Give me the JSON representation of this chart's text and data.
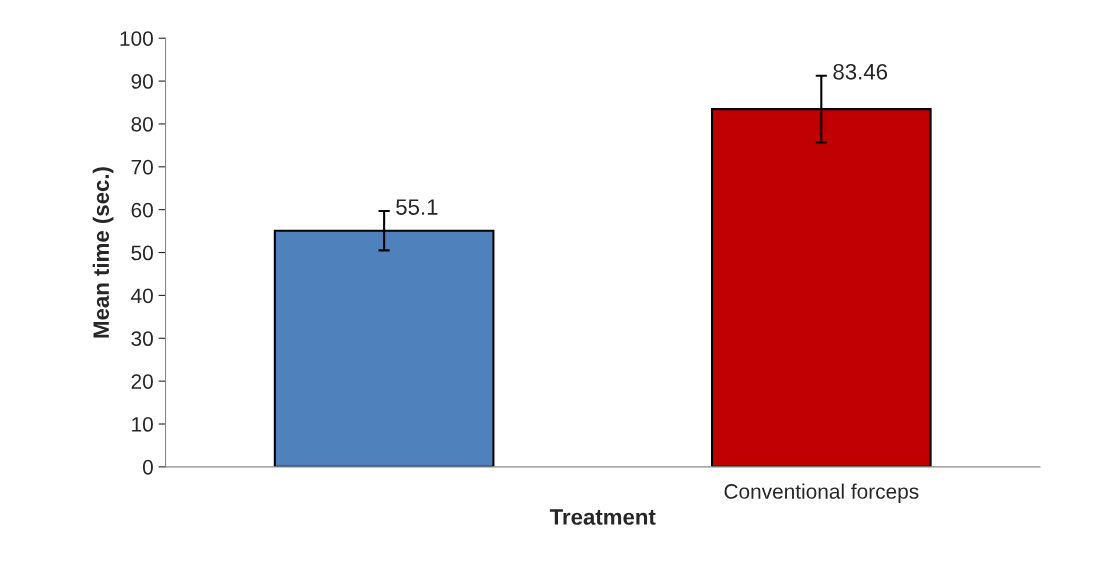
{
  "chart_data": {
    "type": "bar",
    "xlabel": "Treatment",
    "ylabel": "Mean time (sec.)",
    "categories": [
      null,
      "Conventional forceps"
    ],
    "values": [
      55.1,
      83.46
    ],
    "colors": [
      "#4f81bd",
      "#c00000"
    ],
    "errors": [
      4.6,
      7.8
    ],
    "data_labels": true,
    "ylim": [
      0,
      100
    ],
    "yticks": [
      0,
      10,
      20,
      30,
      40,
      50,
      60,
      70,
      80,
      90,
      100
    ],
    "grid": false,
    "legend": false
  }
}
